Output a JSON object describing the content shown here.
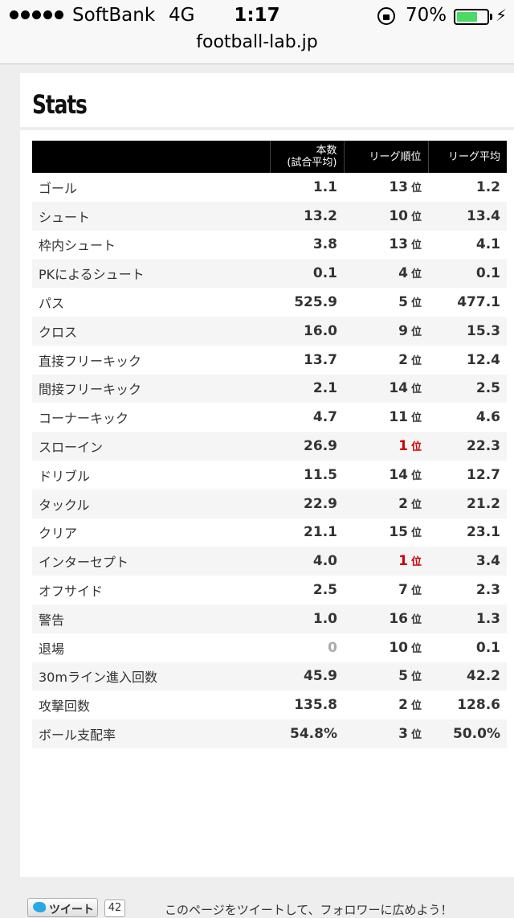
{
  "status_bar": {
    "carrier": "SoftBank",
    "network": "4G",
    "time": "1:17",
    "battery_percent": "70%",
    "battery_level": 0.7
  },
  "browser": {
    "url": "football-lab.jp"
  },
  "section": {
    "title": "Stats"
  },
  "table": {
    "headers": {
      "avg_line1": "本数",
      "avg_line2": "(試合平均)",
      "rank": "リーグ順位",
      "league_avg": "リーグ平均"
    },
    "rank_unit": "位",
    "rows": [
      {
        "label": "ゴール",
        "avg": "1.1",
        "rank": "13",
        "league": "1.2"
      },
      {
        "label": "シュート",
        "avg": "13.2",
        "rank": "10",
        "league": "13.4"
      },
      {
        "label": "枠内シュート",
        "avg": "3.8",
        "rank": "13",
        "league": "4.1"
      },
      {
        "label": "PKによるシュート",
        "avg": "0.1",
        "rank": "4",
        "league": "0.1"
      },
      {
        "label": "パス",
        "avg": "525.9",
        "rank": "5",
        "league": "477.1"
      },
      {
        "label": "クロス",
        "avg": "16.0",
        "rank": "9",
        "league": "15.3"
      },
      {
        "label": "直接フリーキック",
        "avg": "13.7",
        "rank": "2",
        "league": "12.4"
      },
      {
        "label": "間接フリーキック",
        "avg": "2.1",
        "rank": "14",
        "league": "2.5"
      },
      {
        "label": "コーナーキック",
        "avg": "4.7",
        "rank": "11",
        "league": "4.6"
      },
      {
        "label": "スローイン",
        "avg": "26.9",
        "rank": "1",
        "league": "22.3"
      },
      {
        "label": "ドリブル",
        "avg": "11.5",
        "rank": "14",
        "league": "12.7"
      },
      {
        "label": "タックル",
        "avg": "22.9",
        "rank": "2",
        "league": "21.2"
      },
      {
        "label": "クリア",
        "avg": "21.1",
        "rank": "15",
        "league": "23.1"
      },
      {
        "label": "インターセプト",
        "avg": "4.0",
        "rank": "1",
        "league": "3.4"
      },
      {
        "label": "オフサイド",
        "avg": "2.5",
        "rank": "7",
        "league": "2.3"
      },
      {
        "label": "警告",
        "avg": "1.0",
        "rank": "16",
        "league": "1.3"
      },
      {
        "label": "退場",
        "avg": "0",
        "rank": "10",
        "league": "0.1"
      },
      {
        "label": "30mライン進入回数",
        "avg": "45.9",
        "rank": "5",
        "league": "42.2"
      },
      {
        "label": "攻撃回数",
        "avg": "135.8",
        "rank": "2",
        "league": "128.6"
      },
      {
        "label": "ボール支配率",
        "avg": "54.8%",
        "rank": "3",
        "league": "50.0%"
      }
    ]
  },
  "tweet": {
    "button_label": "ツイート",
    "count": "42",
    "caption": "このページをツイートして、フォロワーに広めよう！"
  },
  "colors": {
    "header_bg": "#000000",
    "top_rank": "#cc0000",
    "zero_value": "#aaaaaa",
    "battery": "#4cd964",
    "twitter": "#2aa9e0"
  }
}
